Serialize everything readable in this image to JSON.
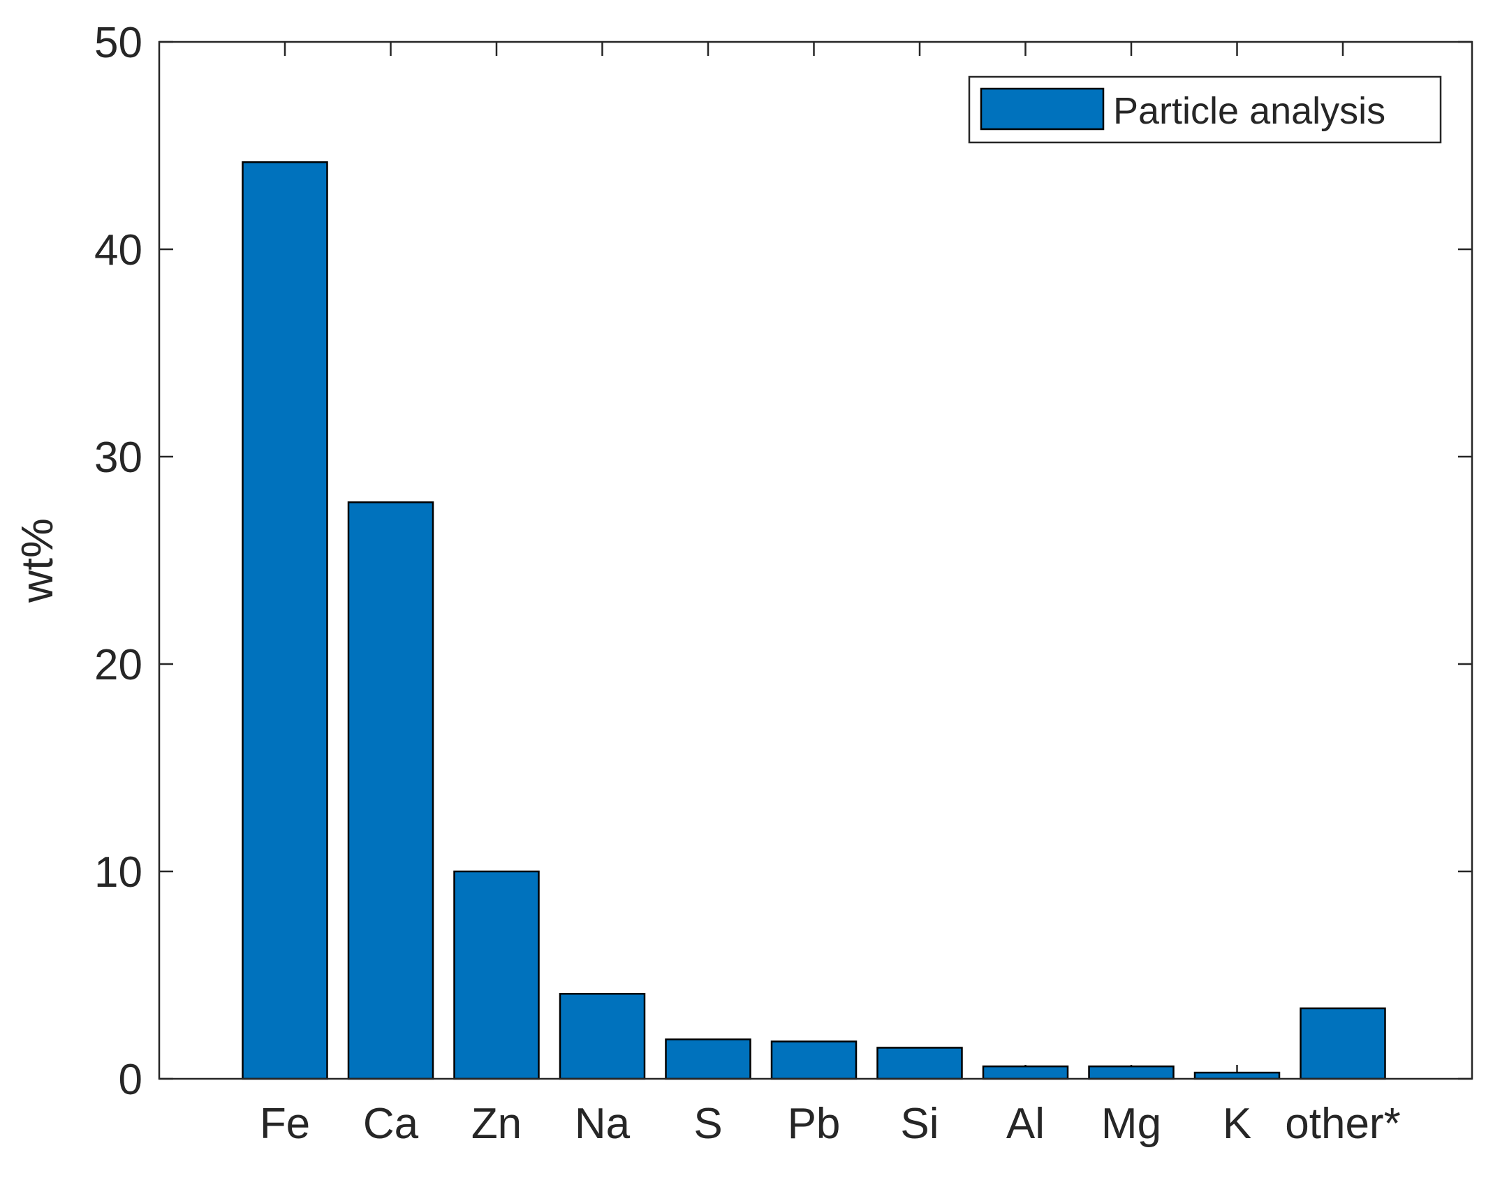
{
  "chart_data": {
    "type": "bar",
    "categories": [
      "Fe",
      "Ca",
      "Zn",
      "Na",
      "S",
      "Pb",
      "Si",
      "Al",
      "Mg",
      "K",
      "other*"
    ],
    "series": [
      {
        "name": "Particle analysis",
        "values": [
          44.2,
          27.8,
          10.0,
          4.1,
          1.9,
          1.8,
          1.5,
          0.6,
          0.6,
          0.3,
          3.4
        ]
      }
    ],
    "title": "",
    "xlabel": "",
    "ylabel": "wt%",
    "ylim": [
      0,
      50
    ],
    "yticks": [
      0,
      10,
      20,
      30,
      40,
      50
    ],
    "grid": false,
    "legend_position": "top-right",
    "colors": {
      "bar_fill": "#0072BD",
      "bar_edge": "#000000",
      "axis": "#262626"
    }
  }
}
